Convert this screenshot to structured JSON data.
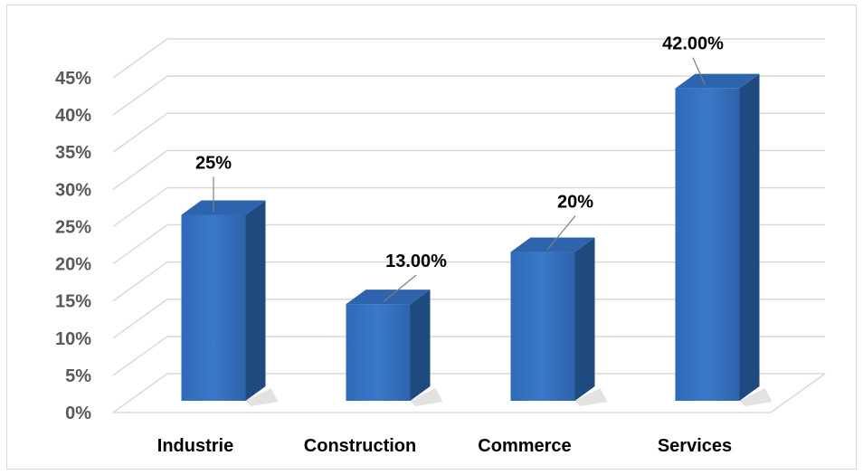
{
  "chart_data": {
    "type": "bar",
    "style": "3d-column",
    "categories": [
      "Industrie",
      "Construction",
      "Commerce",
      "Services"
    ],
    "values": [
      25,
      13,
      20,
      42
    ],
    "data_labels": [
      "25%",
      "13.00%",
      "20%",
      "42.00%"
    ],
    "title": "",
    "xlabel": "",
    "ylabel": "",
    "ylim": [
      0,
      45
    ],
    "y_ticks": [
      "0%",
      "5%",
      "10%",
      "15%",
      "20%",
      "25%",
      "30%",
      "35%",
      "40%",
      "45%"
    ],
    "grid": true,
    "legend": "none",
    "colors": {
      "bar_front": "#3a78c9",
      "bar_side": "#1f4a80",
      "bar_top": "#2e64ad",
      "grid": "#d9d9d9",
      "leader_line": "#7f7f7f"
    }
  }
}
